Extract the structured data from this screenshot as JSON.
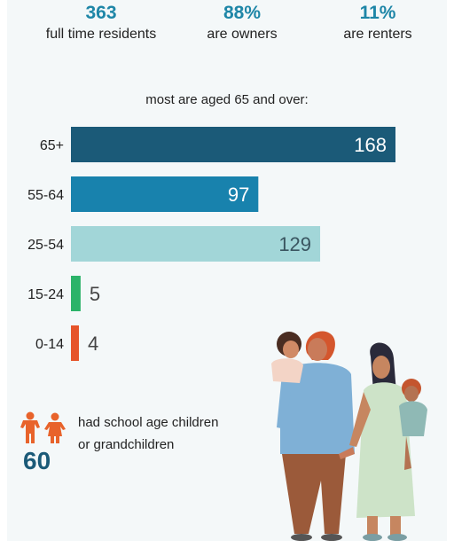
{
  "stats": [
    {
      "value": "363",
      "label": "full time residents"
    },
    {
      "value": "88%",
      "label": "are owners"
    },
    {
      "value": "11%",
      "label": "are renters"
    }
  ],
  "chart_data": {
    "type": "bar",
    "orientation": "horizontal",
    "title": "most are aged 65 and over:",
    "categories": [
      "65+",
      "55-64",
      "25-54",
      "15-24",
      "0-14"
    ],
    "values": [
      168,
      97,
      129,
      5,
      4
    ],
    "colors": [
      "#1b5a78",
      "#1882ad",
      "#a2d6d8",
      "#2bb369",
      "#e6542a"
    ],
    "xlim": [
      0,
      168
    ],
    "grid": false,
    "legend": "none"
  },
  "children": {
    "count": "60",
    "text": "had school age children or grandchildren",
    "icon": "children-icon",
    "icon_color": "#e8632b"
  },
  "illustration": "family-illustration"
}
